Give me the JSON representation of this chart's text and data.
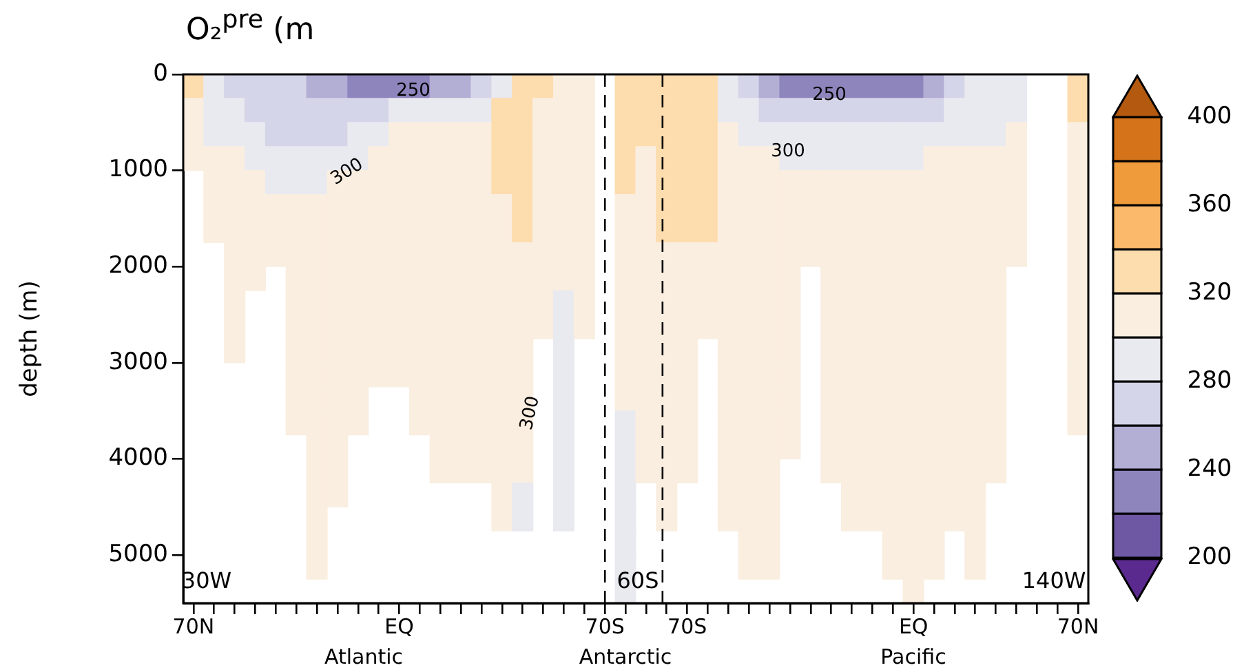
{
  "chart_data": {
    "type": "heatmap",
    "title": "O₂$^{pre}$ (m",
    "ylabel": "depth (m)",
    "categories": [
      "70N",
      null,
      null,
      null,
      null,
      null,
      null,
      null,
      null,
      null,
      "EQ",
      null,
      null,
      null,
      null,
      null,
      null,
      null,
      null,
      null,
      "70S",
      null,
      null,
      null,
      "70S",
      null,
      null,
      null,
      null,
      null,
      null,
      null,
      null,
      null,
      null,
      "EQ",
      null,
      null,
      null,
      null,
      null,
      null,
      null,
      "70N"
    ],
    "ylim": [
      5500,
      0
    ],
    "yticks": [
      0,
      1000,
      2000,
      3000,
      4000,
      5000
    ],
    "clim": [
      200,
      400
    ],
    "cticks": [
      200,
      240,
      280,
      320,
      360,
      400
    ],
    "colors": [
      "#5b2a8e",
      "#6f58a3",
      "#8f85bd",
      "#b3aed4",
      "#d5d5e9",
      "#e9e9f0",
      "#faeee0",
      "#fddcad",
      "#fbb96b",
      "#ef9b3c",
      "#d4731a",
      "#b35a10"
    ],
    "annotations": [
      "250",
      "300",
      "300",
      "250",
      "300",
      "30W",
      "60S",
      "140W",
      "Atlantic",
      "Antarctic",
      "Pacific"
    ],
    "cells": [
      [
        330,
        290,
        270,
        270,
        270,
        270,
        250,
        250,
        230,
        230,
        230,
        230,
        250,
        250,
        270,
        290,
        330,
        330,
        310,
        310,
        null,
        330,
        330,
        330,
        330,
        330,
        290,
        270,
        250,
        230,
        230,
        230,
        230,
        230,
        230,
        230,
        250,
        270,
        290,
        290,
        290,
        null,
        null,
        330
      ],
      [
        310,
        290,
        290,
        270,
        270,
        270,
        270,
        270,
        270,
        270,
        290,
        290,
        290,
        290,
        290,
        330,
        330,
        310,
        310,
        310,
        null,
        330,
        330,
        330,
        330,
        330,
        290,
        290,
        270,
        270,
        270,
        270,
        270,
        270,
        270,
        270,
        270,
        290,
        290,
        290,
        290,
        null,
        null,
        330
      ],
      [
        310,
        290,
        290,
        290,
        270,
        270,
        270,
        270,
        290,
        290,
        310,
        310,
        310,
        310,
        310,
        330,
        330,
        310,
        310,
        310,
        null,
        330,
        330,
        330,
        330,
        330,
        310,
        290,
        290,
        290,
        290,
        290,
        290,
        290,
        290,
        290,
        290,
        290,
        290,
        290,
        310,
        null,
        null,
        310
      ],
      [
        310,
        310,
        310,
        290,
        290,
        290,
        290,
        290,
        290,
        310,
        310,
        310,
        310,
        310,
        310,
        330,
        330,
        310,
        310,
        310,
        null,
        330,
        310,
        330,
        330,
        330,
        310,
        310,
        310,
        290,
        290,
        290,
        290,
        290,
        290,
        290,
        310,
        310,
        310,
        310,
        310,
        null,
        null,
        310
      ],
      [
        null,
        310,
        310,
        310,
        290,
        290,
        290,
        310,
        310,
        310,
        310,
        310,
        310,
        310,
        310,
        330,
        330,
        310,
        310,
        310,
        null,
        330,
        310,
        330,
        330,
        330,
        310,
        310,
        310,
        310,
        310,
        310,
        310,
        310,
        310,
        310,
        310,
        310,
        310,
        310,
        310,
        null,
        null,
        310
      ],
      [
        null,
        310,
        310,
        310,
        310,
        310,
        310,
        310,
        310,
        310,
        310,
        310,
        310,
        310,
        310,
        310,
        330,
        310,
        310,
        310,
        null,
        310,
        310,
        330,
        330,
        330,
        310,
        310,
        310,
        310,
        310,
        310,
        310,
        310,
        310,
        310,
        310,
        310,
        310,
        310,
        310,
        null,
        null,
        310
      ],
      [
        null,
        310,
        310,
        310,
        310,
        310,
        310,
        310,
        310,
        310,
        310,
        310,
        310,
        310,
        310,
        310,
        330,
        310,
        310,
        310,
        null,
        310,
        310,
        330,
        330,
        330,
        310,
        310,
        310,
        310,
        310,
        310,
        310,
        310,
        310,
        310,
        310,
        310,
        310,
        310,
        310,
        null,
        null,
        310
      ],
      [
        null,
        null,
        310,
        310,
        310,
        310,
        310,
        310,
        310,
        310,
        310,
        310,
        310,
        310,
        310,
        310,
        310,
        310,
        310,
        310,
        null,
        310,
        310,
        310,
        310,
        310,
        310,
        310,
        310,
        310,
        310,
        310,
        310,
        310,
        310,
        310,
        310,
        310,
        310,
        310,
        310,
        null,
        null,
        310
      ],
      [
        null,
        null,
        310,
        310,
        null,
        310,
        310,
        310,
        310,
        310,
        310,
        310,
        310,
        310,
        310,
        310,
        310,
        310,
        310,
        310,
        null,
        310,
        310,
        310,
        310,
        310,
        310,
        310,
        310,
        310,
        null,
        310,
        310,
        310,
        310,
        310,
        310,
        310,
        310,
        310,
        null,
        null,
        null,
        310
      ],
      [
        null,
        null,
        310,
        null,
        null,
        310,
        310,
        310,
        310,
        310,
        310,
        310,
        310,
        310,
        310,
        310,
        310,
        310,
        290,
        310,
        null,
        310,
        310,
        310,
        310,
        310,
        310,
        310,
        310,
        310,
        null,
        310,
        310,
        310,
        310,
        310,
        310,
        310,
        310,
        310,
        null,
        null,
        null,
        310
      ],
      [
        null,
        null,
        310,
        null,
        null,
        310,
        310,
        310,
        310,
        310,
        310,
        310,
        310,
        310,
        310,
        310,
        310,
        310,
        290,
        310,
        null,
        310,
        310,
        310,
        310,
        310,
        310,
        310,
        310,
        310,
        null,
        310,
        310,
        310,
        310,
        310,
        310,
        310,
        310,
        310,
        null,
        null,
        null,
        310
      ],
      [
        null,
        null,
        310,
        null,
        null,
        310,
        310,
        310,
        310,
        310,
        310,
        310,
        310,
        310,
        310,
        310,
        310,
        null,
        290,
        null,
        null,
        310,
        310,
        310,
        310,
        null,
        310,
        310,
        310,
        310,
        null,
        310,
        310,
        310,
        310,
        310,
        310,
        310,
        310,
        310,
        null,
        null,
        null,
        310
      ],
      [
        null,
        null,
        null,
        null,
        null,
        310,
        310,
        310,
        310,
        310,
        310,
        310,
        310,
        310,
        310,
        310,
        310,
        null,
        290,
        null,
        null,
        310,
        310,
        310,
        310,
        null,
        310,
        310,
        310,
        310,
        null,
        310,
        310,
        310,
        310,
        310,
        310,
        310,
        310,
        310,
        null,
        null,
        null,
        310
      ],
      [
        null,
        null,
        null,
        null,
        null,
        310,
        310,
        310,
        310,
        null,
        null,
        310,
        310,
        310,
        310,
        310,
        310,
        null,
        290,
        null,
        null,
        310,
        310,
        310,
        310,
        null,
        310,
        310,
        310,
        310,
        null,
        310,
        310,
        310,
        310,
        310,
        310,
        310,
        310,
        310,
        null,
        null,
        null,
        310
      ],
      [
        null,
        null,
        null,
        null,
        null,
        310,
        310,
        310,
        310,
        null,
        null,
        310,
        310,
        310,
        310,
        310,
        310,
        null,
        290,
        null,
        null,
        290,
        310,
        310,
        310,
        null,
        310,
        310,
        310,
        310,
        null,
        310,
        310,
        310,
        310,
        310,
        310,
        310,
        310,
        310,
        null,
        null,
        null,
        310
      ],
      [
        null,
        null,
        null,
        null,
        null,
        null,
        310,
        310,
        null,
        null,
        null,
        null,
        310,
        310,
        310,
        310,
        310,
        null,
        290,
        null,
        null,
        290,
        310,
        310,
        310,
        null,
        310,
        310,
        310,
        310,
        null,
        310,
        310,
        310,
        310,
        310,
        310,
        310,
        310,
        310,
        null,
        null,
        null,
        null
      ],
      [
        null,
        null,
        null,
        null,
        null,
        null,
        310,
        310,
        null,
        null,
        null,
        null,
        310,
        310,
        310,
        310,
        310,
        null,
        290,
        null,
        null,
        290,
        310,
        310,
        310,
        null,
        310,
        310,
        310,
        null,
        null,
        310,
        310,
        310,
        310,
        310,
        310,
        310,
        310,
        310,
        null,
        null,
        null,
        null
      ],
      [
        null,
        null,
        null,
        null,
        null,
        null,
        310,
        310,
        null,
        null,
        null,
        null,
        null,
        null,
        null,
        310,
        290,
        null,
        290,
        null,
        null,
        290,
        null,
        310,
        null,
        null,
        310,
        310,
        310,
        null,
        null,
        null,
        310,
        310,
        310,
        310,
        310,
        310,
        310,
        null,
        null,
        null,
        null,
        null
      ],
      [
        null,
        null,
        null,
        null,
        null,
        null,
        310,
        null,
        null,
        null,
        null,
        null,
        null,
        null,
        null,
        310,
        290,
        null,
        290,
        null,
        null,
        290,
        null,
        310,
        null,
        null,
        310,
        310,
        310,
        null,
        null,
        null,
        310,
        310,
        310,
        310,
        310,
        310,
        310,
        null,
        null,
        null,
        null,
        null
      ],
      [
        null,
        null,
        null,
        null,
        null,
        null,
        310,
        null,
        null,
        null,
        null,
        null,
        null,
        null,
        null,
        null,
        null,
        null,
        null,
        null,
        null,
        290,
        null,
        null,
        null,
        null,
        null,
        310,
        310,
        null,
        null,
        null,
        null,
        null,
        310,
        310,
        310,
        null,
        310,
        null,
        null,
        null,
        null,
        null
      ],
      [
        null,
        null,
        null,
        null,
        null,
        null,
        310,
        null,
        null,
        null,
        null,
        null,
        null,
        null,
        null,
        null,
        null,
        null,
        null,
        null,
        null,
        290,
        null,
        null,
        null,
        null,
        null,
        310,
        310,
        null,
        null,
        null,
        null,
        null,
        310,
        310,
        310,
        null,
        310,
        null,
        null,
        null,
        null,
        null
      ],
      [
        null,
        null,
        null,
        null,
        null,
        null,
        null,
        null,
        null,
        null,
        null,
        null,
        null,
        null,
        null,
        null,
        null,
        null,
        null,
        null,
        null,
        290,
        null,
        null,
        null,
        null,
        null,
        null,
        null,
        null,
        null,
        null,
        null,
        null,
        null,
        310,
        null,
        null,
        null,
        null,
        null,
        null,
        null,
        null
      ]
    ]
  }
}
